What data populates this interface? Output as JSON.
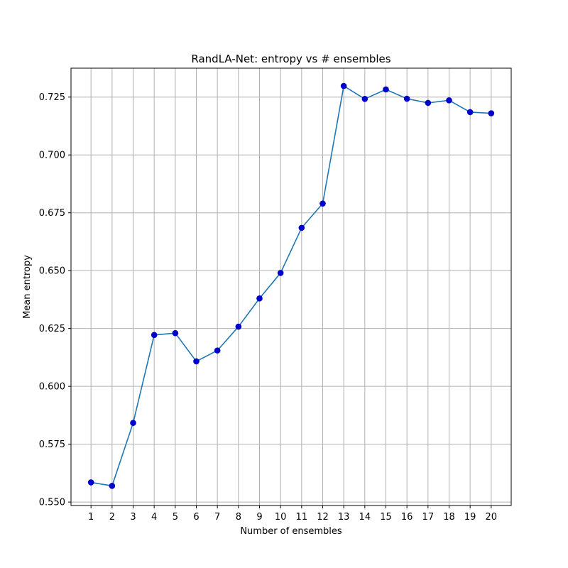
{
  "chart_data": {
    "type": "line",
    "title": "RandLA-Net: entropy vs # ensembles",
    "xlabel": "Number of ensembles",
    "ylabel": "Mean entropy",
    "x": [
      1,
      2,
      3,
      4,
      5,
      6,
      7,
      8,
      9,
      10,
      11,
      12,
      13,
      14,
      15,
      16,
      17,
      18,
      19,
      20
    ],
    "series": [
      {
        "values": [
          0.5585,
          0.557,
          0.5842,
          0.6222,
          0.623,
          0.6108,
          0.6155,
          0.6258,
          0.638,
          0.649,
          0.6685,
          0.679,
          0.7298,
          0.7242,
          0.7283,
          0.7243,
          0.7225,
          0.7236,
          0.7185,
          0.718
        ],
        "color": "#1f77b4",
        "marker_color": "#0000cc"
      }
    ],
    "xlim": [
      0.05,
      20.95
    ],
    "ylim": [
      0.5485,
      0.7375
    ],
    "xticks": [
      "1",
      "2",
      "3",
      "4",
      "5",
      "6",
      "7",
      "8",
      "9",
      "10",
      "11",
      "12",
      "13",
      "14",
      "15",
      "16",
      "17",
      "18",
      "19",
      "20"
    ],
    "yticks": [
      "0.550",
      "0.575",
      "0.600",
      "0.625",
      "0.650",
      "0.675",
      "0.700",
      "0.725"
    ],
    "ytick_values": [
      0.55,
      0.575,
      0.6,
      0.625,
      0.65,
      0.675,
      0.7,
      0.725
    ],
    "grid": true,
    "legend": "none"
  }
}
